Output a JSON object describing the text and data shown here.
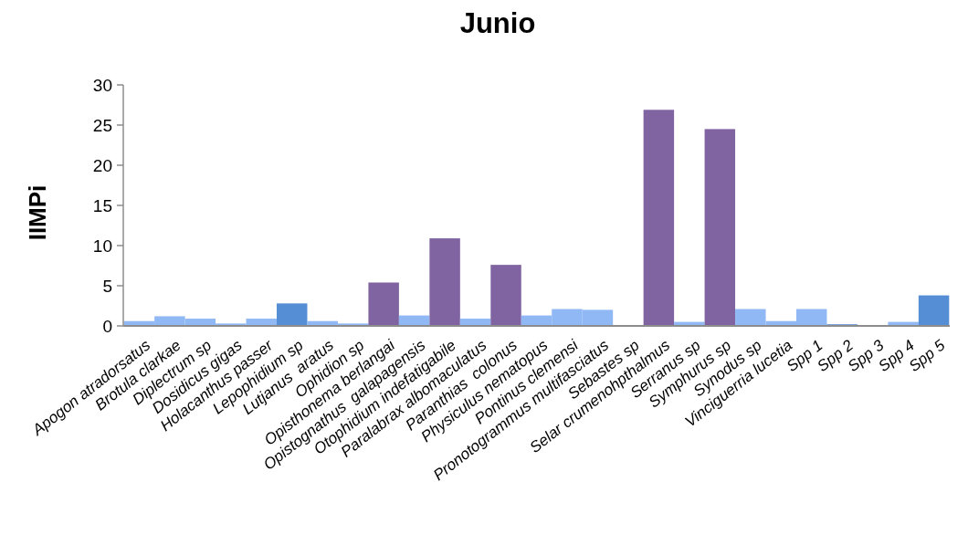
{
  "chart_data": {
    "type": "bar",
    "title": "Junio",
    "ylabel": "IIMPi",
    "categories": [
      "Apogon atradorsatus",
      "Brotula clarkae",
      "Diplectrum sp",
      "Dosidicus gigas",
      "Holacanthus passer",
      "Lepophidium sp",
      "Lutjanus  aratus",
      "Ophidion sp",
      "Opisthonema berlangai",
      "Opistognathus  galapagensis",
      "Otophidium indefatigabile",
      "Paralabrax albomaculatus",
      "Paranthias  colonus",
      "Physiculus nematopus",
      "Pontinus clemensi",
      "Pronotogrammus multifasciatus",
      "Sebastes sp",
      "Selar crumenohpthalmus",
      "Serranus sp",
      "Symphurus sp",
      "Synodus sp",
      "Vinciguerria lucetia",
      "Spp 1",
      "Spp 2",
      "Spp 3",
      "Spp 4",
      "Spp 5"
    ],
    "values": [
      0.6,
      1.2,
      0.9,
      0.3,
      0.9,
      2.8,
      0.6,
      0.3,
      5.4,
      1.3,
      10.9,
      0.9,
      7.6,
      1.3,
      2.1,
      2.0,
      0,
      26.9,
      0.5,
      24.5,
      2.1,
      0.6,
      2.1,
      0.2,
      0,
      0.5,
      3.8
    ],
    "colors": [
      "#8fb8f5",
      "#8fb8f5",
      "#8fb8f5",
      "#8fb8f5",
      "#8fb8f5",
      "#558ed5",
      "#8fb8f5",
      "#8fb8f5",
      "#8064a2",
      "#8fb8f5",
      "#8064a2",
      "#8fb8f5",
      "#8064a2",
      "#8fb8f5",
      "#8fb8f5",
      "#8fb8f5",
      "#8fb8f5",
      "#8064a2",
      "#8fb8f5",
      "#8064a2",
      "#8fb8f5",
      "#8fb8f5",
      "#8fb8f5",
      "#558ed5",
      "#8fb8f5",
      "#8fb8f5",
      "#558ed5"
    ],
    "ylim": [
      0,
      30
    ],
    "yticks": [
      0,
      5,
      10,
      15,
      20,
      25,
      30
    ],
    "grid": false
  }
}
